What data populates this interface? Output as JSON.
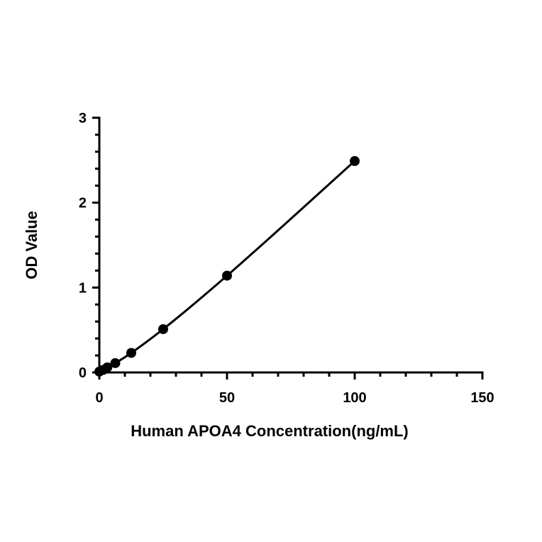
{
  "chart_data": {
    "type": "scatter",
    "title": "",
    "xlabel": "Human APOA4 Concentration(ng/mL)",
    "ylabel": "OD Value",
    "xlim": [
      0,
      150
    ],
    "ylim": [
      0,
      3
    ],
    "x_ticks": [
      0,
      50,
      100,
      150
    ],
    "x_tick_labels": [
      "0",
      "50",
      "100",
      "150"
    ],
    "x_minor_step": 10,
    "y_ticks": [
      0,
      1,
      2,
      3
    ],
    "y_tick_labels": [
      "0",
      "1",
      "2",
      "3"
    ],
    "y_minor_step": 0.2,
    "grid": false,
    "legend": "none",
    "fit_line": true,
    "color": "#000000",
    "series": [
      {
        "x": [
          0,
          1.56,
          3.13,
          6.25,
          12.5,
          25,
          50,
          100
        ],
        "y": [
          0.01,
          0.03,
          0.06,
          0.11,
          0.23,
          0.51,
          1.14,
          2.49
        ]
      }
    ]
  }
}
